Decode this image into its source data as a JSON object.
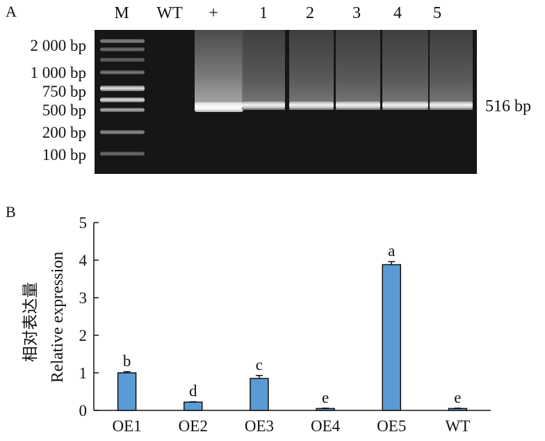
{
  "panel_a": {
    "label": "A",
    "lanes": [
      "M",
      "WT",
      "+",
      "1",
      "2",
      "3",
      "4",
      "5"
    ],
    "ladder": [
      "2 000 bp",
      "1 000 bp",
      "750 bp",
      "500 bp",
      "200 bp",
      "100 bp"
    ],
    "band_size": "516 bp"
  },
  "panel_b": {
    "label": "B",
    "ylabel_cn": "相对表达量",
    "ylabel_en": "Relative expression"
  },
  "chart_data": {
    "type": "bar",
    "categories": [
      "OE1",
      "OE2",
      "OE3",
      "OE4",
      "OE5",
      "WT"
    ],
    "values": [
      1.0,
      0.22,
      0.85,
      0.05,
      3.88,
      0.05
    ],
    "errors": [
      0.03,
      0.01,
      0.08,
      0.01,
      0.08,
      0.01
    ],
    "significance": [
      "b",
      "d",
      "c",
      "e",
      "a",
      "e"
    ],
    "ylabel": "相对表达量 Relative expression",
    "ylim": [
      0,
      5
    ],
    "yticks": [
      0,
      1,
      2,
      3,
      4,
      5
    ],
    "bar_color": "#5b9bd5",
    "grid": false
  }
}
